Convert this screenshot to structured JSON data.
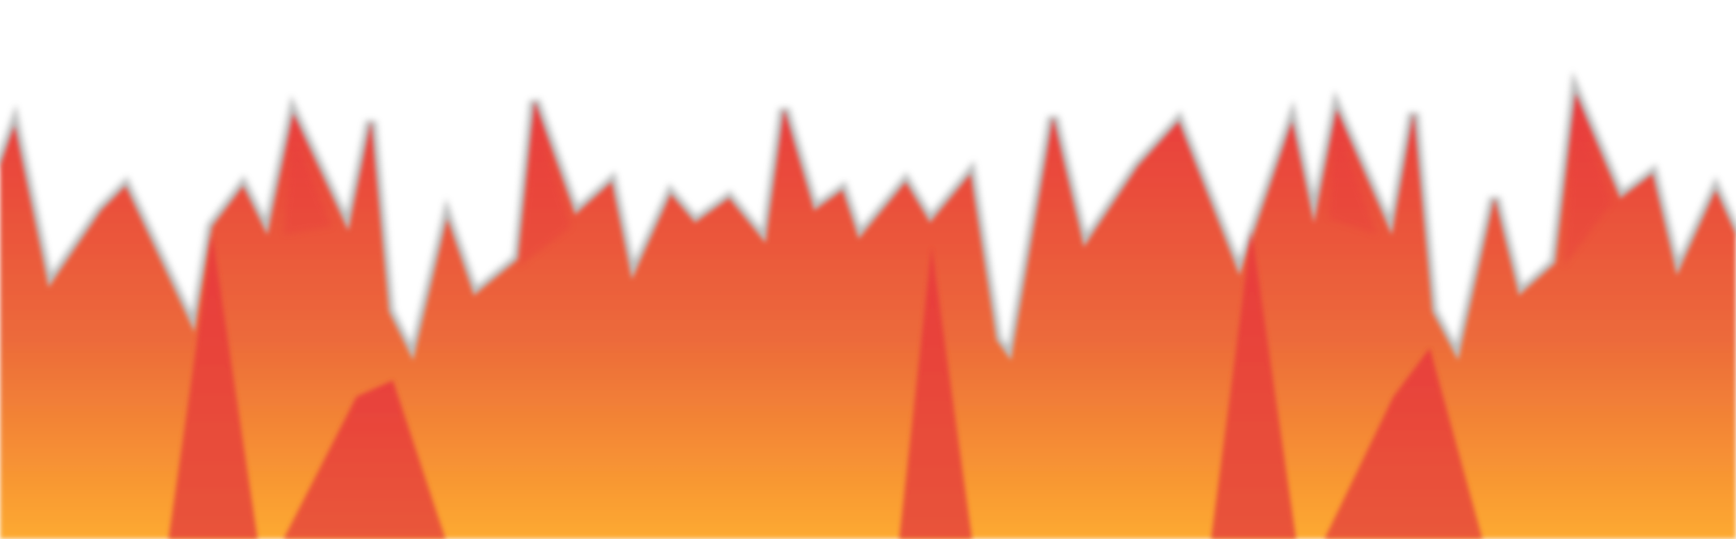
{
  "artwork": {
    "subject": "flame-silhouette-icon",
    "colors": {
      "background": "#ffffff",
      "flame_top": "#e83a3c",
      "flame_mid": "#ec6a3a",
      "flame_bottom": "#fdaa30",
      "outline": "#a8a8a8"
    }
  }
}
